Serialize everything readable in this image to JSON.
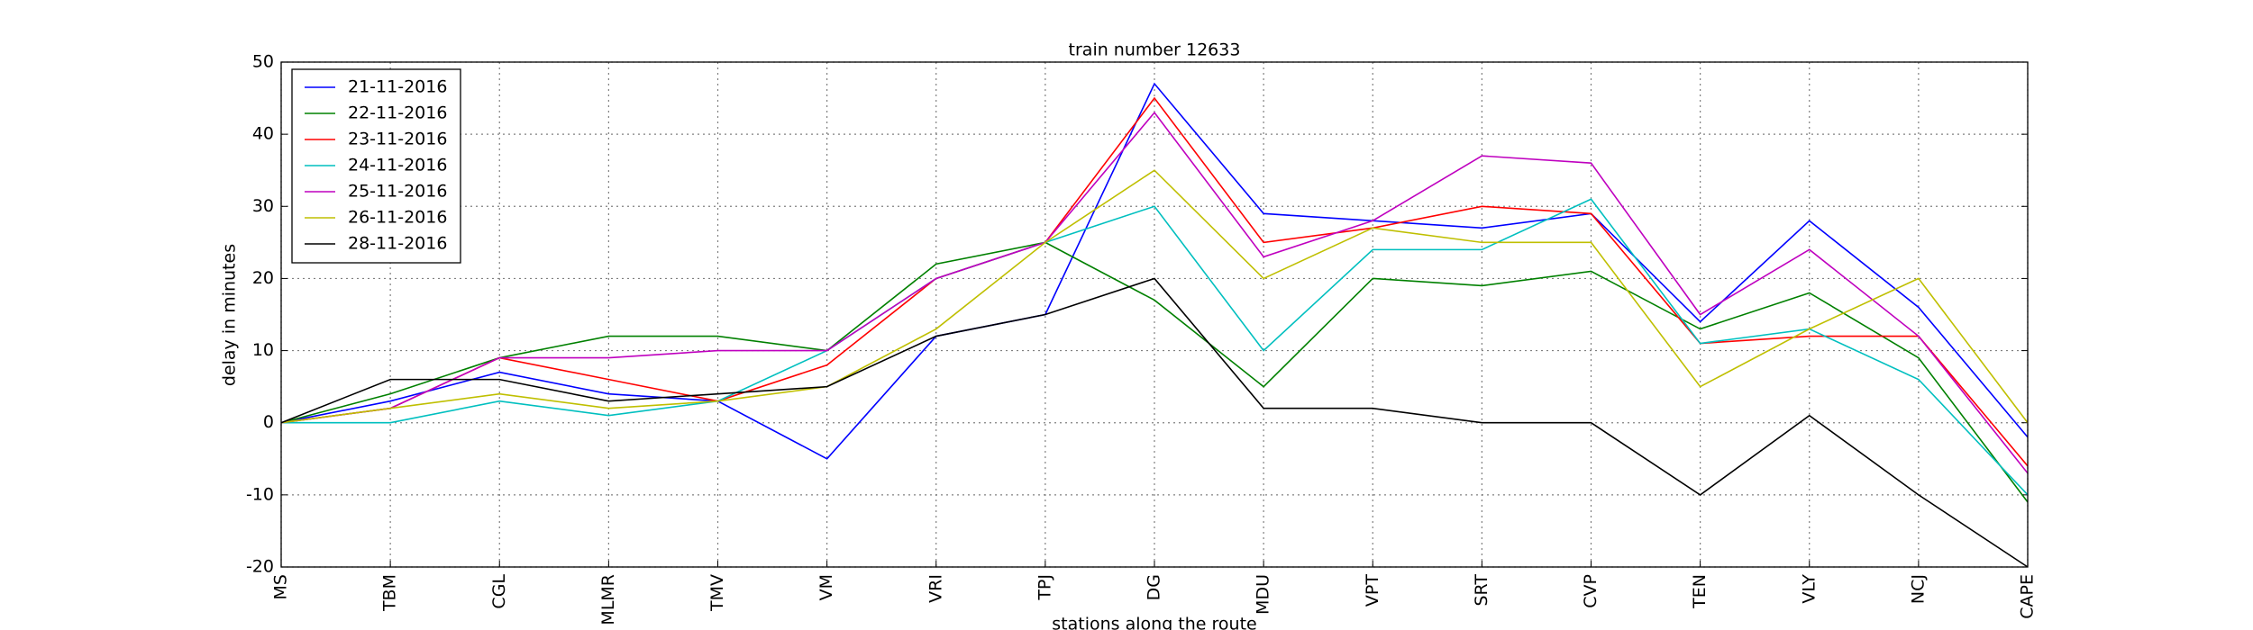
{
  "chart_data": {
    "type": "line",
    "title": "train number 12633",
    "x_label": "stations along the route",
    "y_label": "delay in minutes",
    "categories": [
      "MS",
      "TBM",
      "CGL",
      "MLMR",
      "TMV",
      "VM",
      "VRI",
      "TPJ",
      "DG",
      "MDU",
      "VPT",
      "SRT",
      "CVP",
      "TEN",
      "VLY",
      "NCJ",
      "CAPE"
    ],
    "series": [
      {
        "name": "21-11-2016",
        "color": "#0000ff",
        "values": [
          0,
          3,
          7,
          4,
          3,
          -5,
          12,
          15,
          47,
          29,
          28,
          27,
          29,
          14,
          28,
          16,
          -2
        ]
      },
      {
        "name": "22-11-2016",
        "color": "#008000",
        "values": [
          0,
          4,
          9,
          12,
          12,
          10,
          22,
          25,
          17,
          5,
          20,
          19,
          21,
          13,
          18,
          9,
          -11
        ]
      },
      {
        "name": "23-11-2016",
        "color": "#ff0000",
        "values": [
          0,
          2,
          9,
          6,
          3,
          8,
          20,
          25,
          45,
          25,
          27,
          30,
          29,
          11,
          12,
          12,
          -6
        ]
      },
      {
        "name": "24-11-2016",
        "color": "#00bfbf",
        "values": [
          0,
          0,
          3,
          1,
          3,
          10,
          20,
          25,
          30,
          10,
          24,
          24,
          31,
          11,
          13,
          6,
          -10
        ]
      },
      {
        "name": "25-11-2016",
        "color": "#bf00bf",
        "values": [
          0,
          2,
          9,
          9,
          10,
          10,
          20,
          25,
          43,
          23,
          28,
          37,
          36,
          15,
          24,
          12,
          -7
        ]
      },
      {
        "name": "26-11-2016",
        "color": "#bfbf00",
        "values": [
          0,
          2,
          4,
          2,
          3,
          5,
          13,
          25,
          35,
          20,
          27,
          25,
          25,
          5,
          13,
          20,
          0
        ]
      },
      {
        "name": "28-11-2016",
        "color": "#000000",
        "values": [
          0,
          6,
          6,
          3,
          4,
          5,
          12,
          15,
          20,
          2,
          2,
          0,
          0,
          -10,
          1,
          -10,
          -20
        ]
      }
    ],
    "ylim": [
      -20,
      50
    ],
    "yticks": [
      -20,
      -10,
      0,
      10,
      20,
      30,
      40,
      50
    ],
    "grid": true,
    "legend": "upper left"
  }
}
